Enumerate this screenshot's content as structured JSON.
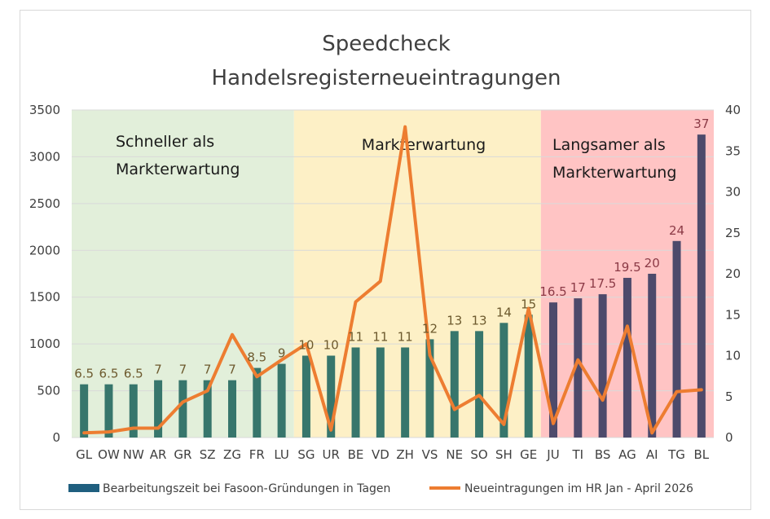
{
  "chart_data": {
    "type": "bar",
    "title_lines": [
      "Speedcheck",
      "Handelsregisterneueintragungen"
    ],
    "categories": [
      "GL",
      "OW",
      "NW",
      "AR",
      "GR",
      "SZ",
      "ZG",
      "FR",
      "LU",
      "SG",
      "UR",
      "BE",
      "VD",
      "ZH",
      "VS",
      "NE",
      "SO",
      "SH",
      "GE",
      "JU",
      "TI",
      "BS",
      "AG",
      "AI",
      "TG",
      "BL"
    ],
    "series": [
      {
        "name": "Bearbeitungszeit bei Fasoon-Gründungen in Tagen",
        "kind": "bar",
        "axis": "right",
        "values": [
          6.5,
          6.5,
          6.5,
          7,
          7,
          7,
          7,
          8.5,
          9,
          10,
          10,
          11,
          11,
          11,
          12,
          13,
          13,
          14,
          15,
          16.5,
          17,
          17.5,
          19.5,
          20,
          24,
          37
        ],
        "data_labels": [
          "6.5",
          "6.5",
          "6.5",
          "7",
          "7",
          "7",
          "7",
          "8.5",
          "9",
          "10",
          "10",
          "11",
          "11",
          "11",
          "12",
          "13",
          "13",
          "14",
          "15",
          "16.5",
          "17",
          "17.5",
          "19.5",
          "20",
          "24",
          "37"
        ]
      },
      {
        "name": "Neueintragungen im HR Jan - April 2026",
        "kind": "line",
        "axis": "left",
        "values": [
          50,
          60,
          100,
          100,
          380,
          500,
          1100,
          650,
          830,
          1000,
          80,
          1450,
          1670,
          3320,
          880,
          300,
          450,
          140,
          1380,
          150,
          830,
          400,
          1190,
          50,
          490,
          510
        ]
      }
    ],
    "left_axis": {
      "min": 0,
      "max": 3500,
      "ticks": [
        "0",
        "500",
        "1000",
        "1500",
        "2000",
        "2500",
        "3000",
        "3500"
      ]
    },
    "right_axis": {
      "min": 0,
      "max": 40,
      "ticks": [
        "0",
        "5",
        "10",
        "15",
        "20",
        "25",
        "30",
        "35",
        "40"
      ]
    },
    "zones": [
      {
        "label_lines": [
          "Schneller als",
          "Markterwartung"
        ],
        "color": "#e2efda"
      },
      {
        "label_lines": [
          "Markterwartung"
        ],
        "color": "#fdf0c6"
      },
      {
        "label_lines": [
          "Langsamer als",
          "Markterwartung"
        ],
        "color": "#ffc4c4"
      }
    ],
    "colors": {
      "bar_green": "#37766c",
      "bar_purple": "#4d4a6b",
      "line": "#ed7d31",
      "label_green": "#6d5a2e",
      "label_red": "#8b3a46",
      "legend_bar": "#1f5f7f",
      "grid": "#d9d9d9"
    },
    "legend_position": "bottom",
    "grid": true
  }
}
